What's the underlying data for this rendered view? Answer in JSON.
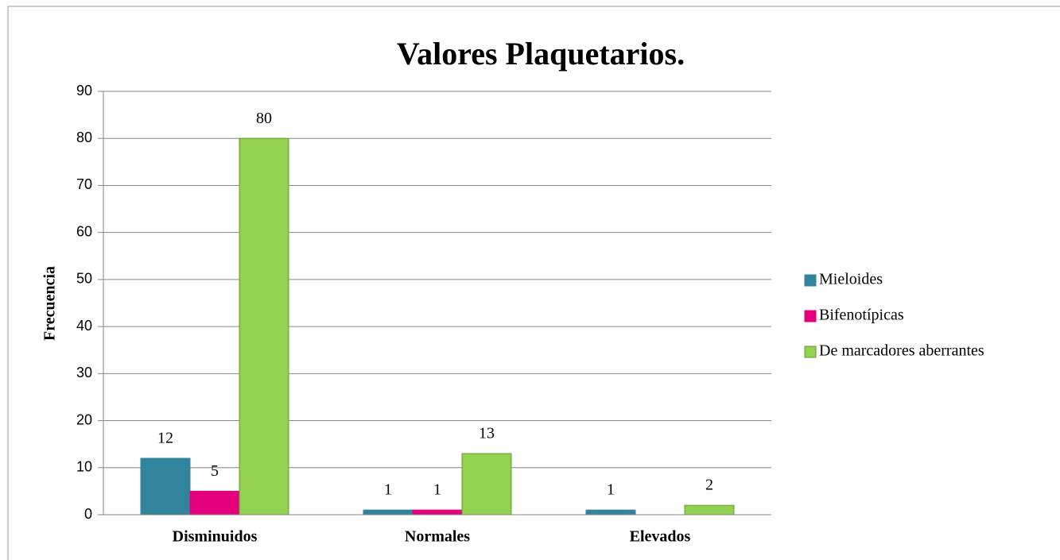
{
  "chart_data": {
    "type": "bar",
    "title": "Valores Plaquetarios.",
    "y_label": "Frecuencia",
    "categories": [
      "Disminuidos",
      "Normales",
      "Elevados"
    ],
    "series": [
      {
        "name": "Mieloides",
        "color": "#31849b",
        "values": [
          12,
          1,
          1
        ]
      },
      {
        "name": "Bifenotípicas",
        "color": "#e4007c",
        "values": [
          5,
          1,
          null
        ]
      },
      {
        "name": "De marcadores aberrantes",
        "color": "#92d050",
        "values": [
          80,
          13,
          2
        ]
      }
    ],
    "ylim": [
      0,
      90
    ],
    "yticks": [
      0,
      10,
      20,
      30,
      40,
      50,
      60,
      70,
      80,
      90
    ],
    "grid": true,
    "legend": "right"
  }
}
